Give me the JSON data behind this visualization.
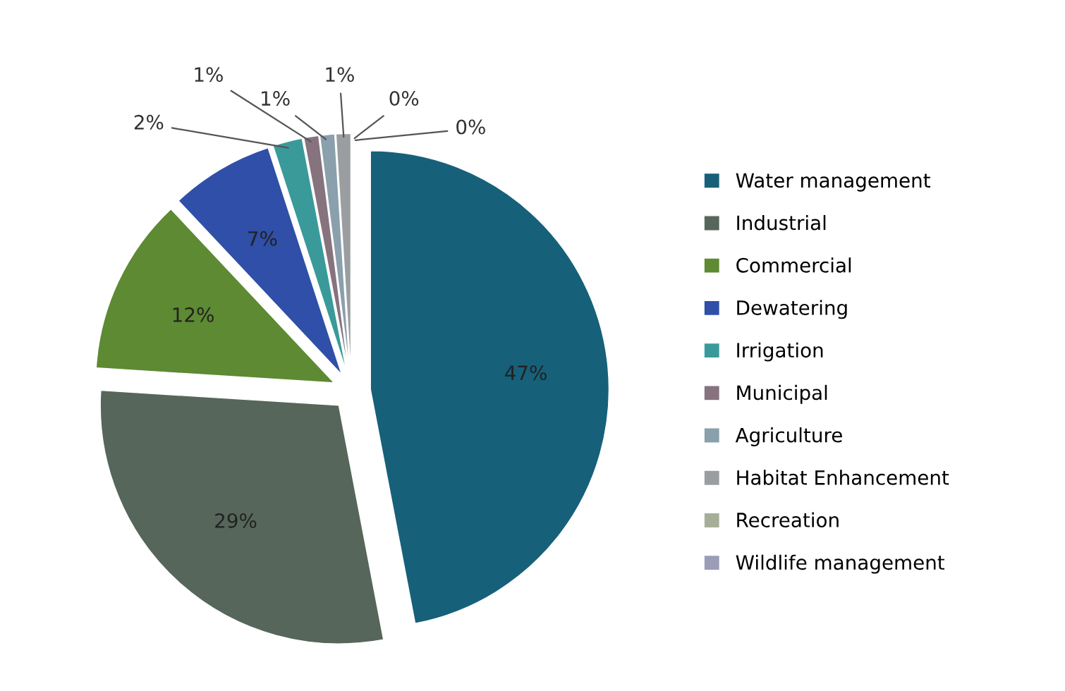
{
  "chart_data": {
    "type": "pie",
    "categories": [
      "Water management",
      "Industrial",
      "Commercial",
      "Dewatering",
      "Irrigation",
      "Municipal",
      "Agriculture",
      "Habitat Enhancement",
      "Recreation",
      "Wildlife management"
    ],
    "values": [
      47,
      29,
      12,
      7,
      2,
      1,
      1,
      1,
      0,
      0
    ],
    "colors": [
      "#17607a",
      "#56665a",
      "#5d8a32",
      "#2f4fa8",
      "#3a9a9a",
      "#86737e",
      "#8aa0ac",
      "#9a9ea0",
      "#a7ae98",
      "#9a9cb8"
    ],
    "value_labels": [
      "47%",
      "29%",
      "12%",
      "7%",
      "2%",
      "1%",
      "1%",
      "1%",
      "0%",
      "0%"
    ],
    "legend": "right"
  }
}
